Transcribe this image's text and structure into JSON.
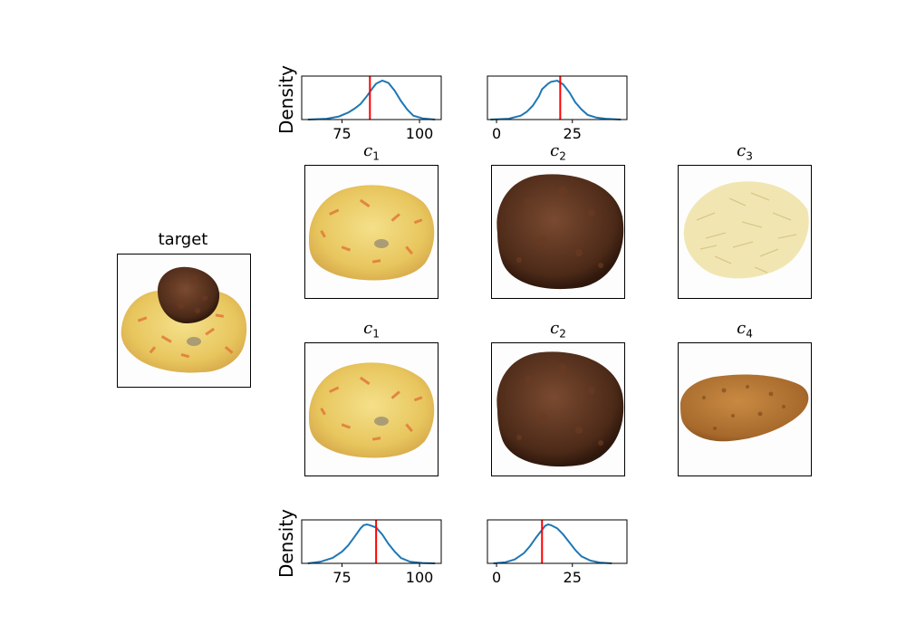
{
  "density_label": "Density",
  "target_title": "target",
  "colors": {
    "curve": "#1f77b4",
    "marker": "#ff0000",
    "axis": "#000000"
  },
  "grid_titles": [
    [
      {
        "base": "c",
        "sub": "1"
      },
      {
        "base": "c",
        "sub": "2"
      },
      {
        "base": "c",
        "sub": "3"
      }
    ],
    [
      {
        "base": "c",
        "sub": "1"
      },
      {
        "base": "c",
        "sub": "2"
      },
      {
        "base": "c",
        "sub": "4"
      }
    ]
  ],
  "images": {
    "target": "mashed-potato-carrot-with-meatball",
    "row1": [
      "mashed-potato-carrot",
      "meatball",
      "shredded-cabbage"
    ],
    "row2": [
      "mashed-potato-carrot",
      "meatball",
      "breaded-patty"
    ]
  },
  "chart_data": [
    {
      "type": "line",
      "panel": "top-left",
      "ylabel": "Density",
      "xlim": [
        62,
        107
      ],
      "xticks": [
        75,
        100
      ],
      "marker_x": 84,
      "x": [
        64,
        70,
        74,
        77,
        79,
        81,
        83,
        85,
        86,
        88,
        90,
        92,
        94,
        96,
        98,
        101,
        105
      ],
      "y": [
        0.0,
        0.02,
        0.08,
        0.18,
        0.28,
        0.4,
        0.6,
        0.82,
        0.92,
        1.0,
        0.94,
        0.74,
        0.48,
        0.26,
        0.1,
        0.03,
        0.0
      ]
    },
    {
      "type": "line",
      "panel": "top-right",
      "ylabel": "",
      "xlim": [
        -3,
        43
      ],
      "xticks": [
        0,
        25
      ],
      "marker_x": 21,
      "x": [
        -2,
        4,
        8,
        10,
        12,
        14,
        15,
        17,
        18,
        20,
        22,
        24,
        26,
        28,
        30,
        33,
        36,
        41
      ],
      "y": [
        0.0,
        0.02,
        0.1,
        0.2,
        0.36,
        0.6,
        0.78,
        0.92,
        0.97,
        1.0,
        0.9,
        0.7,
        0.44,
        0.26,
        0.12,
        0.05,
        0.02,
        0.0
      ]
    },
    {
      "type": "line",
      "panel": "bottom-left",
      "ylabel": "Density",
      "xlim": [
        62,
        107
      ],
      "xticks": [
        75,
        100
      ],
      "marker_x": 86,
      "x": [
        64,
        68,
        72,
        75,
        77,
        79,
        81,
        82,
        83,
        84,
        86,
        88,
        90,
        92,
        94,
        97,
        101,
        105
      ],
      "y": [
        0.0,
        0.04,
        0.14,
        0.3,
        0.46,
        0.68,
        0.9,
        0.98,
        1.0,
        0.98,
        0.92,
        0.74,
        0.5,
        0.3,
        0.14,
        0.04,
        0.01,
        0.0
      ]
    },
    {
      "type": "line",
      "panel": "bottom-right",
      "ylabel": "",
      "xlim": [
        -3,
        43
      ],
      "xticks": [
        0,
        25
      ],
      "marker_x": 15,
      "x": [
        -1,
        3,
        6,
        9,
        11,
        13,
        15,
        16,
        17,
        18,
        20,
        22,
        24,
        26,
        28,
        31,
        34,
        38
      ],
      "y": [
        0.0,
        0.03,
        0.1,
        0.26,
        0.44,
        0.66,
        0.86,
        0.96,
        1.0,
        0.98,
        0.9,
        0.74,
        0.54,
        0.34,
        0.18,
        0.07,
        0.02,
        0.0
      ]
    }
  ]
}
